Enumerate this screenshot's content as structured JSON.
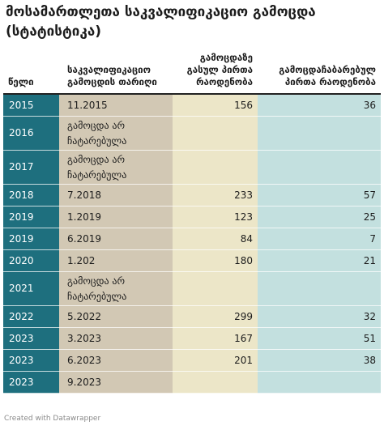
{
  "title": "მოსამართლეთა საკვალიფიკაციო გამოცდა (სტატისტიკა)",
  "footer": "Created with Datawrapper",
  "chart_data": {
    "type": "table",
    "columns": [
      "წელი",
      "საკვალიფიკაციო გამოცდის თარიღი",
      "გამოცდაზე გასულ პირთა რაოდენობა",
      "გამოცდაჩაბარებულ პირთა რაოდენობა"
    ],
    "rows": [
      [
        "2015",
        "11.2015",
        "156",
        "36"
      ],
      [
        "2016",
        "გამოცდა არ ჩატარებულა",
        "",
        ""
      ],
      [
        "2017",
        "გამოცდა არ ჩატარებულა",
        "",
        ""
      ],
      [
        "2018",
        "7.2018",
        "233",
        "57"
      ],
      [
        "2019",
        "1.2019",
        "123",
        "25"
      ],
      [
        "2019",
        "6.2019",
        "84",
        "7"
      ],
      [
        "2020",
        "1.202",
        "180",
        "21"
      ],
      [
        "2021",
        "გამოცდა არ ჩატარებულა",
        "",
        ""
      ],
      [
        "2022",
        "5.2022",
        "299",
        "32"
      ],
      [
        "2023",
        "3.2023",
        "167",
        "51"
      ],
      [
        "2023",
        "6.2023",
        "201",
        "38"
      ],
      [
        "2023",
        "9.2023",
        "",
        ""
      ]
    ],
    "colors": {
      "year_column": "#1e6f7e",
      "date_column": "#d2c8b4",
      "attended_column": "#ece6c8",
      "passed_column": "#c3e0df"
    }
  }
}
